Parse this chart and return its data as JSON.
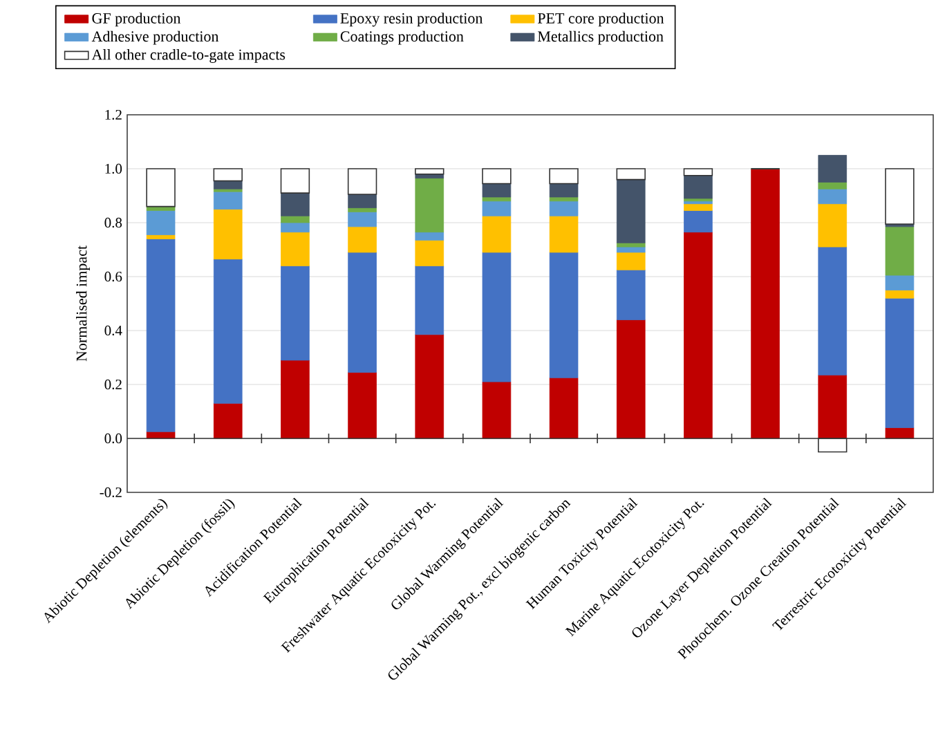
{
  "chart_data": {
    "type": "bar",
    "stacked": true,
    "ylabel": "Normalised impact",
    "categories": [
      "Abiotic Depletion (elements)",
      "Abiotic Depletion (fossil)",
      "Acidification Potential",
      "Eutrophication Potential",
      "Freshwater Aquatic Ecotoxicity Pot.",
      "Global Warming Potential",
      "Global Warming Pot., excl biogenic carbon",
      "Human Toxicity Potential",
      "Marine Aquatic Ecotoxicity Pot.",
      "Ozone Layer Depletion Potential",
      "Photochem. Ozone Creation Potential",
      "Terrestric Ecotoxicity Potential"
    ],
    "series": [
      {
        "name": "GF production",
        "color": "#c00000",
        "values": [
          0.025,
          0.13,
          0.29,
          0.245,
          0.385,
          0.21,
          0.225,
          0.44,
          0.765,
          1.0,
          0.235,
          0.04
        ]
      },
      {
        "name": "Epoxy resin production",
        "color": "#4472c4",
        "values": [
          0.715,
          0.535,
          0.35,
          0.445,
          0.255,
          0.48,
          0.465,
          0.185,
          0.08,
          0,
          0.475,
          0.48
        ]
      },
      {
        "name": "PET core production",
        "color": "#ffc000",
        "values": [
          0.015,
          0.185,
          0.125,
          0.095,
          0.095,
          0.135,
          0.135,
          0.065,
          0.025,
          0,
          0.16,
          0.03
        ]
      },
      {
        "name": "Adhesive production",
        "color": "#5b9bd5",
        "values": [
          0.09,
          0.065,
          0.035,
          0.055,
          0.03,
          0.055,
          0.055,
          0.02,
          0.01,
          0,
          0.055,
          0.055
        ]
      },
      {
        "name": "Coatings production",
        "color": "#70ad47",
        "values": [
          0.015,
          0.01,
          0.025,
          0.015,
          0.2,
          0.015,
          0.015,
          0.015,
          0.01,
          0,
          0.025,
          0.18
        ]
      },
      {
        "name": "Metallics production",
        "color": "#44546a",
        "values": [
          0,
          0.03,
          0.085,
          0.05,
          0.015,
          0.05,
          0.05,
          0.235,
          0.085,
          0,
          0.1,
          0.01
        ]
      },
      {
        "name": "All other cradle-to-gate impacts",
        "color": "#ffffff",
        "values": [
          0.14,
          0.045,
          0.09,
          0.095,
          0.02,
          0.055,
          0.055,
          0.04,
          0.025,
          0,
          -0.05,
          0.205
        ]
      }
    ],
    "ylim": [
      -0.2,
      1.2
    ],
    "yticks": [
      -0.2,
      {
        "value": 0,
        "label": "0.0"
      },
      0.2,
      0.4,
      0.6,
      0.8,
      {
        "value": 1,
        "label": "1.0"
      },
      1.2
    ],
    "grid": "y",
    "legend": "top"
  }
}
